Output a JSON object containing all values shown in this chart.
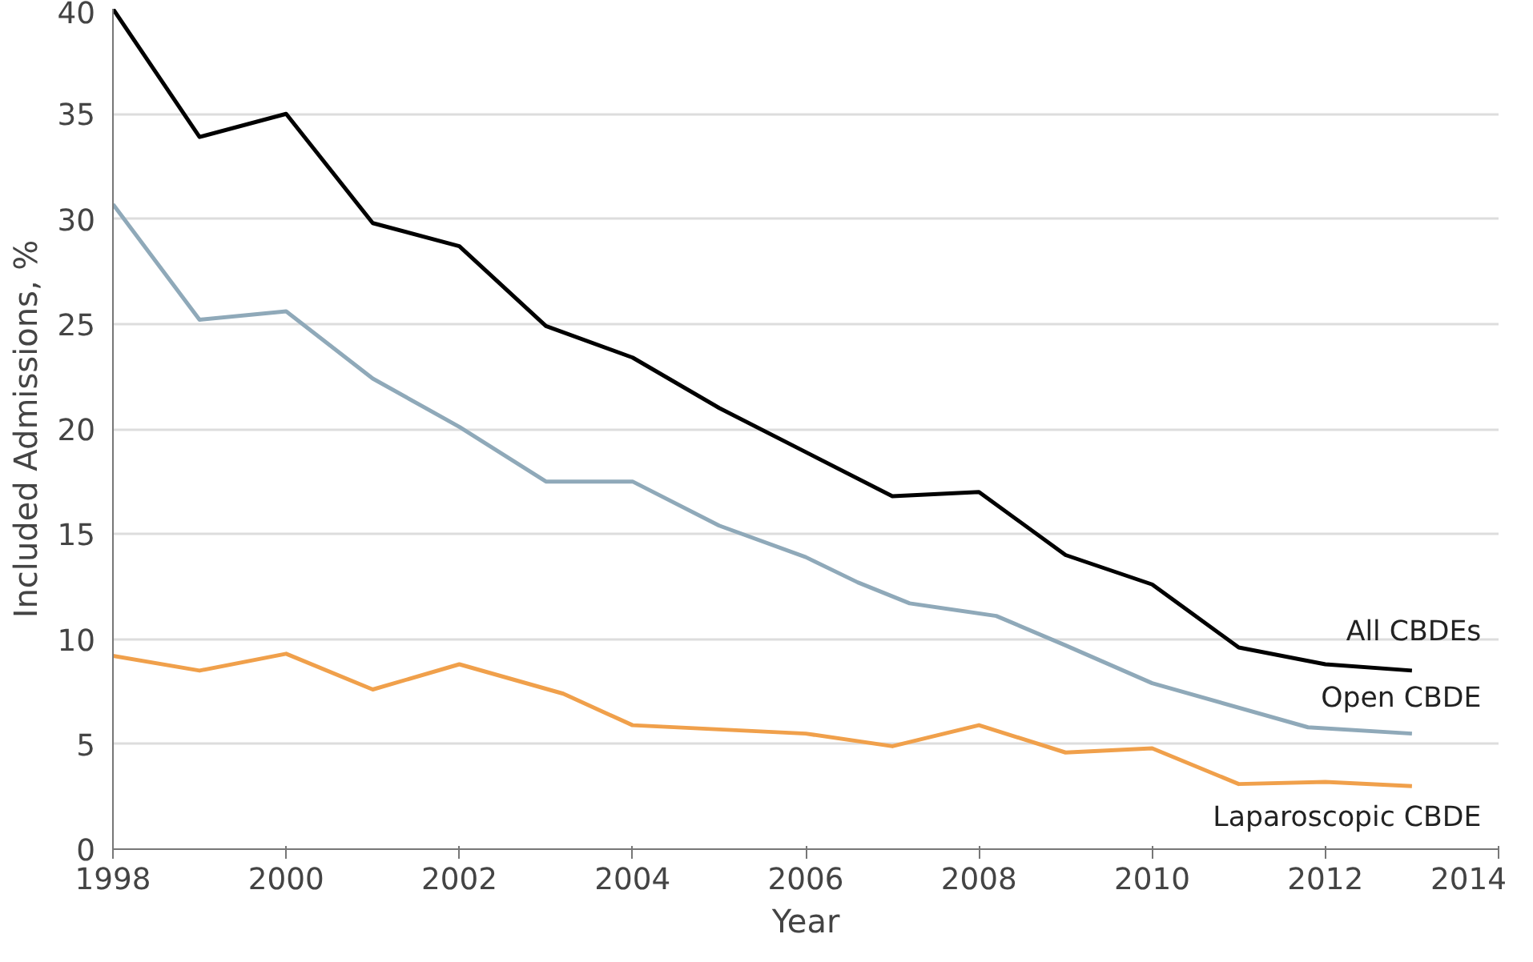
{
  "chart_data": {
    "type": "line",
    "xlabel": "Year",
    "ylabel": "Included Admissions, %",
    "xlim": [
      1998,
      2014
    ],
    "xticks": [
      1998,
      2000,
      2002,
      2004,
      2006,
      2008,
      2010,
      2012,
      2014
    ],
    "ylim": [
      0,
      40
    ],
    "yticks": [
      0,
      5,
      10,
      15,
      20,
      25,
      30,
      35,
      40
    ],
    "grid": "y",
    "line_style": "solid",
    "series": [
      {
        "name": "All CBDEs",
        "color": "#000000",
        "x": [
          1998,
          1999,
          2000,
          2001,
          2002,
          2003,
          2004,
          2005,
          2006,
          2007,
          2008,
          2009,
          2010,
          2011,
          2012,
          2013
        ],
        "values": [
          40,
          33.9,
          35,
          29.8,
          28.7,
          24.9,
          23.4,
          21,
          18.9,
          16.8,
          17,
          14,
          12.6,
          9.6,
          8.8,
          8.5
        ]
      },
      {
        "name": "Open CBDE",
        "color": "#8fa9b9",
        "x": [
          1998,
          1999,
          2000,
          2001,
          2002,
          2003,
          2004,
          2005,
          2006,
          2006.6,
          2007.2,
          2008.2,
          2009,
          2010,
          2011.8,
          2013
        ],
        "values": [
          30.7,
          25.2,
          25.6,
          22.4,
          20.1,
          17.5,
          17.5,
          15.4,
          13.9,
          12.7,
          11.7,
          11.1,
          9.7,
          7.9,
          5.8,
          5.5
        ]
      },
      {
        "name": "Laparoscopic CBDE",
        "color": "#f0a04b",
        "x": [
          1998,
          1999,
          2000,
          2001,
          2002,
          2003.2,
          2004,
          2006,
          2007,
          2008,
          2009,
          2010,
          2011,
          2012,
          2013
        ],
        "values": [
          9.2,
          8.5,
          9.3,
          7.6,
          8.8,
          7.4,
          5.9,
          5.5,
          4.9,
          5.9,
          4.6,
          4.8,
          3.1,
          3.2,
          3.0
        ]
      }
    ]
  }
}
